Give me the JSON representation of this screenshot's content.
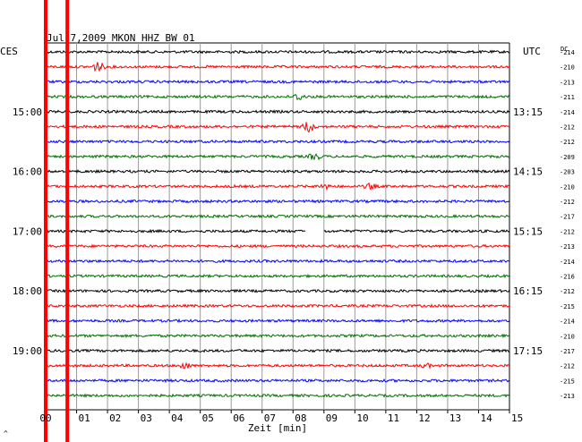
{
  "chart_data": {
    "type": "line",
    "title": "Jul 7,2009   MKON HHZ BW 01",
    "left_axis_label": "CES",
    "right_axis_label": "UTC",
    "dc_label": "DC",
    "xlabel": "Zeit [min]",
    "x_ticks": [
      "00",
      "01",
      "02",
      "03",
      "04",
      "05",
      "06",
      "07",
      "08",
      "09",
      "10",
      "11",
      "12",
      "13",
      "14",
      "15"
    ],
    "xlim": [
      0,
      15
    ],
    "row_minutes": 15,
    "left_time_labels": [
      {
        "row": 4,
        "text": "15:00"
      },
      {
        "row": 8,
        "text": "16:00"
      },
      {
        "row": 12,
        "text": "17:00"
      },
      {
        "row": 16,
        "text": "18:00"
      },
      {
        "row": 20,
        "text": "19:00"
      }
    ],
    "right_time_labels": [
      {
        "row": 4,
        "text": "13:15"
      },
      {
        "row": 8,
        "text": "14:15"
      },
      {
        "row": 12,
        "text": "15:15"
      },
      {
        "row": 16,
        "text": "16:15"
      },
      {
        "row": 20,
        "text": "17:15"
      }
    ],
    "trace_colors": [
      "#000000",
      "#ff0000",
      "#0000ff",
      "#007000"
    ],
    "dc_offsets": [
      "-214",
      "-210",
      "-213",
      "-211",
      "-214",
      "-212",
      "-212",
      "-209",
      "-203",
      "-210",
      "-212",
      "-217",
      "-212",
      "-213",
      "-214",
      "-216",
      "-212",
      "-215",
      "-214",
      "-210",
      "-217",
      "-212",
      "-215",
      "-213"
    ],
    "events": [
      {
        "row": 1,
        "minute": 1.7,
        "amplitude": 6
      },
      {
        "row": 3,
        "minute": 8.2,
        "amplitude": 4
      },
      {
        "row": 5,
        "minute": 8.5,
        "amplitude": 7
      },
      {
        "row": 7,
        "minute": 8.7,
        "amplitude": 4
      },
      {
        "row": 9,
        "minute": 9.0,
        "amplitude": 3
      },
      {
        "row": 9,
        "minute": 10.5,
        "amplitude": 3
      },
      {
        "row": 21,
        "minute": 4.5,
        "amplitude": 4
      },
      {
        "row": 21,
        "minute": 12.3,
        "amplitude": 2
      }
    ],
    "gaps": [
      {
        "row": 12,
        "start_minute": 8.4,
        "end_minute": 9.0
      }
    ],
    "marker_lines": [
      {
        "minute": 0.0,
        "color": "#ff0000"
      },
      {
        "minute": 0.7,
        "color": "#ff0000"
      }
    ],
    "footer_mark": "^"
  }
}
